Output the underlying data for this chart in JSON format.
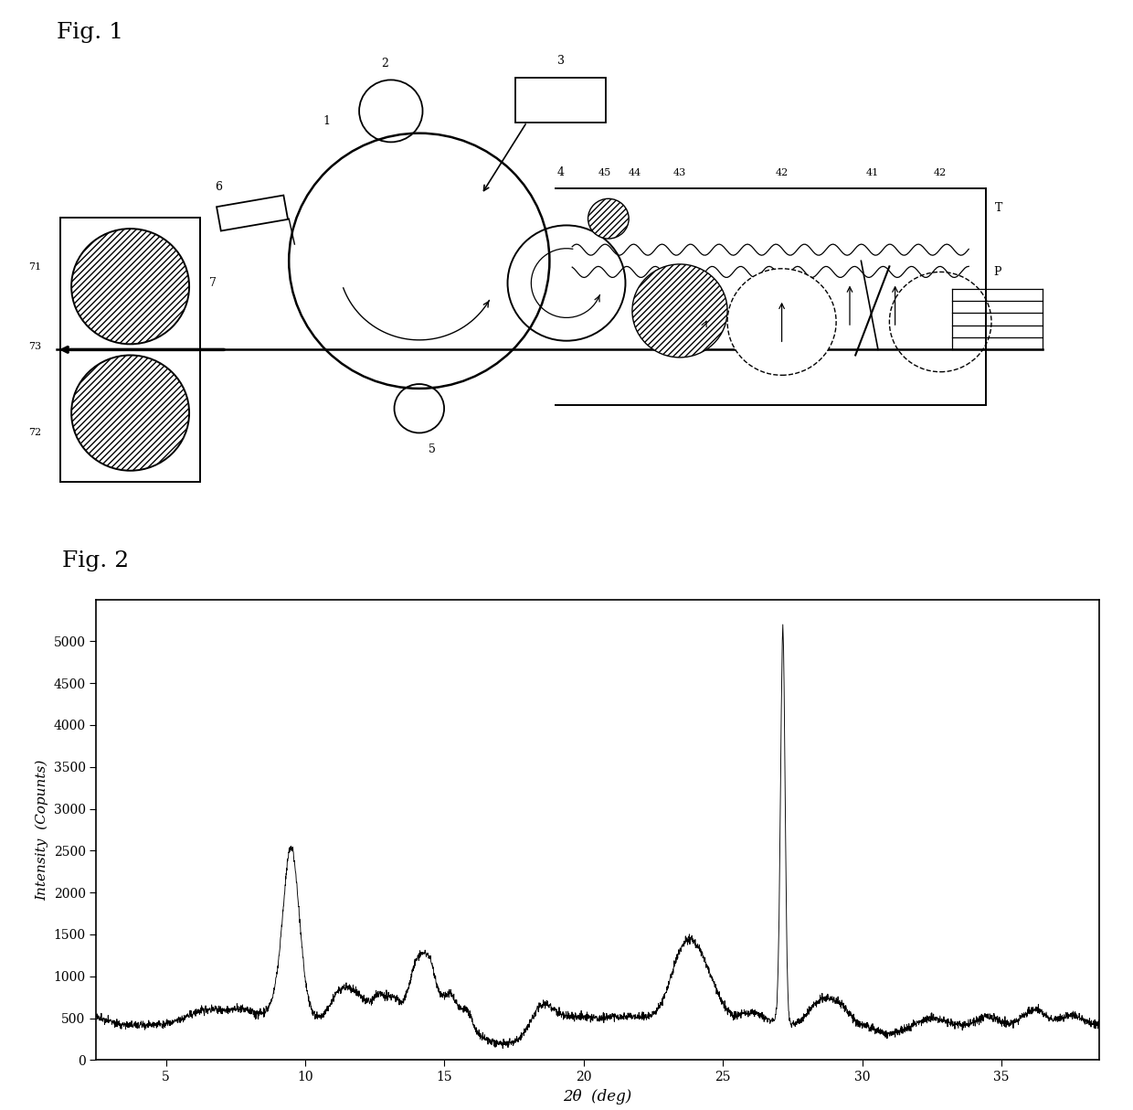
{
  "fig1_label": "Fig. 1",
  "fig2_label": "Fig. 2",
  "fig2_xlabel": "2θ  (deg)",
  "fig2_ylabel": "Intensity  (Copunts)",
  "fig2_xlim": [
    2.5,
    38.5
  ],
  "fig2_ylim": [
    0,
    5500
  ],
  "fig2_xticks": [
    5,
    10,
    15,
    20,
    25,
    30,
    35
  ],
  "fig2_yticks": [
    0,
    500,
    1000,
    1500,
    2000,
    2500,
    3000,
    3500,
    4000,
    4500,
    5000
  ],
  "background_color": "#ffffff",
  "line_color": "#000000"
}
